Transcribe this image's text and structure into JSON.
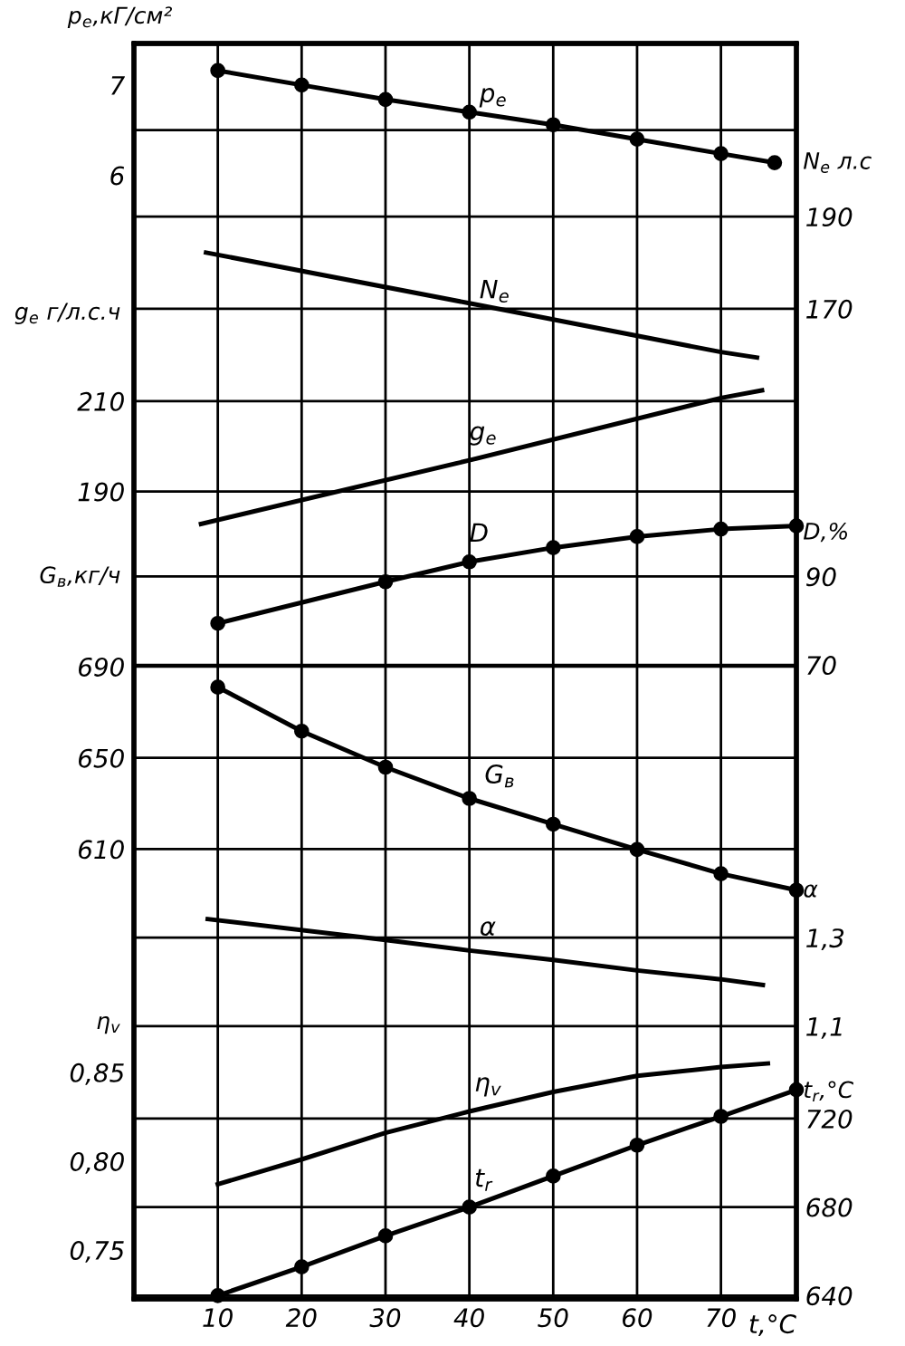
{
  "chart_data": [
    {
      "type": "line",
      "ylabel": "p$_{e}$,кГ/см²",
      "xlim": [
        0,
        79
      ],
      "ylim": [
        -6.44,
        7.46
      ],
      "yticks": [
        7,
        6
      ],
      "tick_labels": "y",
      "grid": "x",
      "marker": "circle",
      "ref_lines": [
        {
          "axis": "y",
          "value": 6.5,
          "color": "#000000"
        }
      ],
      "series": [
        {
          "name": "p$_{e}$",
          "color": "#000000",
          "x": [
            10,
            20,
            30,
            40,
            50,
            60,
            70,
            76.4
          ],
          "values": [
            7.16,
            7.0,
            6.84,
            6.7,
            6.56,
            6.4,
            6.24,
            6.14
          ]
        }
      ]
    },
    {
      "type": "line",
      "ylabel": "N$_{e}$ л.с",
      "xlim": [
        0,
        79
      ],
      "ylim": [
        -45,
        227.6
      ],
      "yticks": [
        190,
        170
      ],
      "tick_labels": "y",
      "grid": true,
      "series": [
        {
          "name": "N$_{e}$",
          "color": "#000000",
          "x": [
            8.6,
            40,
            70,
            74.3
          ],
          "values": [
            182.2,
            171.2,
            160.6,
            159.4
          ]
        }
      ]
    },
    {
      "type": "line",
      "ylabel": "g$_{e}$ г/л.с.ч",
      "xlim": [
        0,
        79
      ],
      "ylim": [
        11.2,
        289.2
      ],
      "yticks": [
        210,
        190
      ],
      "tick_labels": "y",
      "grid": true,
      "series": [
        {
          "name": "g$_{e}$",
          "color": "#000000",
          "x": [
            8.0,
            40,
            70,
            74.9
          ],
          "values": [
            182.8,
            196.9,
            210.7,
            212.4
          ]
        }
      ]
    },
    {
      "type": "line",
      "ylabel": "D,%",
      "xlim": [
        0,
        79
      ],
      "ylim": [
        -73.2,
        210.4
      ],
      "yticks": [
        90,
        70
      ],
      "tick_labels": "y",
      "grid": true,
      "marker": "circle",
      "series": [
        {
          "name": "D",
          "color": "#000000",
          "x": [
            10,
            30,
            40,
            50,
            60,
            70,
            79
          ],
          "values": [
            79.4,
            88.8,
            93.3,
            96.5,
            99.0,
            100.7,
            101.4
          ]
        }
      ]
    },
    {
      "type": "line",
      "ylabel": "G$_{в}$,кг/ч",
      "xlim": [
        0,
        79
      ],
      "ylim": [
        412.8,
        963.2
      ],
      "yticks": [
        690,
        650,
        610
      ],
      "tick_labels": "y",
      "grid": true,
      "marker": "circle",
      "series": [
        {
          "name": "G$_{в}$",
          "color": "#000000",
          "x": [
            10,
            20,
            30,
            40,
            50,
            60,
            70,
            79
          ],
          "values": [
            681.0,
            661.7,
            645.9,
            632.2,
            620.9,
            609.8,
            599.2,
            592.0
          ]
        }
      ]
    },
    {
      "type": "line",
      "ylabel": "α",
      "xlim": [
        0,
        79
      ],
      "ylim": [
        0.484,
        3.32
      ],
      "yticks": [
        {
          "value": 1.3,
          "label": "1,3"
        },
        {
          "value": 1.1,
          "label": "1,1"
        }
      ],
      "tick_labels": "y",
      "grid": true,
      "series": [
        {
          "name": "α",
          "color": "#000000",
          "x": [
            8.8,
            30,
            40,
            50,
            60,
            70,
            75
          ],
          "values": [
            1.342,
            1.295,
            1.271,
            1.25,
            1.226,
            1.206,
            1.193
          ]
        }
      ]
    },
    {
      "type": "line",
      "ylabel": "η$_{v}$",
      "xlim": [
        0,
        79
      ],
      "ylim": [
        0.7225,
        1.429
      ],
      "yticks": [
        {
          "value": 0.85,
          "label": "0,85"
        },
        {
          "value": 0.8,
          "label": "0,80"
        },
        {
          "value": 0.75,
          "label": "0,75"
        }
      ],
      "tick_labels": "y",
      "grid": "x",
      "series": [
        {
          "name": "η$_{v}$",
          "color": "#000000",
          "x": [
            10,
            20,
            30,
            40,
            50,
            60,
            70,
            75.6
          ],
          "values": [
            0.787,
            0.801,
            0.816,
            0.828,
            0.839,
            0.848,
            0.853,
            0.855
          ]
        }
      ]
    },
    {
      "type": "line",
      "ylabel": "t$_{r}$,°C",
      "xlabel": "t,°C",
      "xlim": [
        0,
        79
      ],
      "xticks": [
        10,
        20,
        30,
        40,
        50,
        60,
        70
      ],
      "ylim": [
        638.5,
        1206
      ],
      "yticks": [
        720,
        680,
        640
      ],
      "grid": true,
      "marker": "circle",
      "series": [
        {
          "name": "t$_{r}$",
          "color": "#000000",
          "x": [
            10,
            20,
            30,
            40,
            50,
            60,
            70,
            79
          ],
          "values": [
            640,
            653,
            667,
            680,
            694,
            708,
            721,
            733
          ]
        }
      ]
    }
  ]
}
